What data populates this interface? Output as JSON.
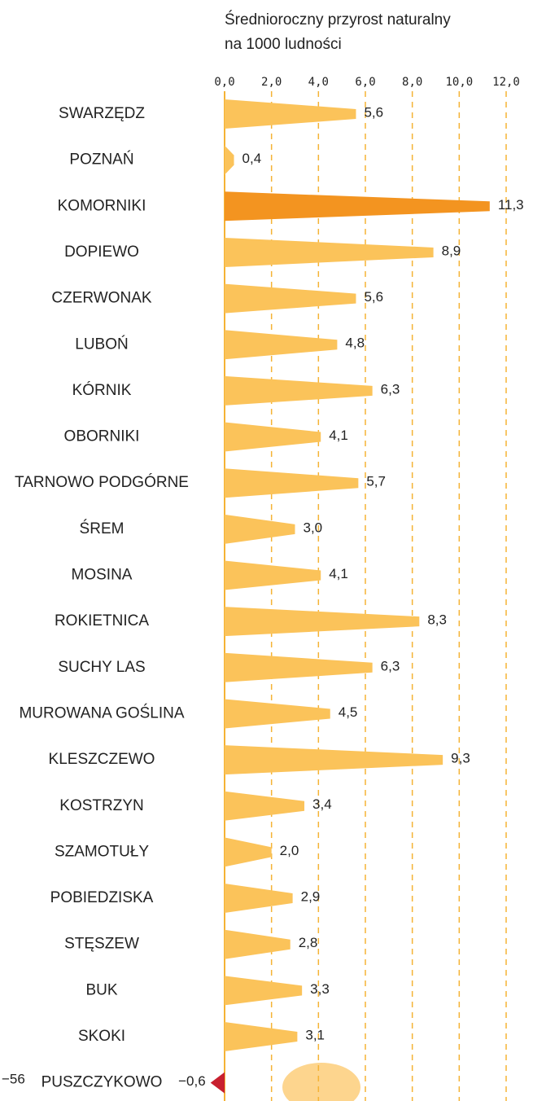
{
  "chart_data": {
    "type": "bar",
    "title": [
      "Średnioroczny przyrost naturalny",
      "na 1000 ludności"
    ],
    "categories": [
      "SWARZĘDZ",
      "POZNAŃ",
      "KOMORNIKI",
      "DOPIEWO",
      "CZERWONAK",
      "LUBOŃ",
      "KÓRNIK",
      "OBORNIKI",
      "TARNOWO PODGÓRNE",
      "ŚREM",
      "MOSINA",
      "ROKIETNICA",
      "SUCHY LAS",
      "MUROWANA GOŚLINA",
      "KLESZCZEWO",
      "KOSTRZYN",
      "SZAMOTUŁY",
      "POBIEDZISKA",
      "STĘSZEW",
      "BUK",
      "SKOKI",
      "PUSZCZYKOWO"
    ],
    "values": [
      5.6,
      0.4,
      11.3,
      8.9,
      5.6,
      4.8,
      6.3,
      4.1,
      5.7,
      3.0,
      4.1,
      8.3,
      6.3,
      4.5,
      9.3,
      3.4,
      2.0,
      2.9,
      2.8,
      3.3,
      3.1,
      -0.6
    ],
    "value_labels": [
      "5,6",
      "0,4",
      "11,3",
      "8,9",
      "5,6",
      "4,8",
      "6,3",
      "4,1",
      "5,7",
      "3,0",
      "4,1",
      "8,3",
      "6,3",
      "4,5",
      "9,3",
      "3,4",
      "2,0",
      "2,9",
      "2,8",
      "3,3",
      "3,1",
      "−0,6"
    ],
    "colors": [
      "#fbc35a",
      "#fbc35a",
      "#f39420",
      "#fbc35a",
      "#fbc35a",
      "#fbc35a",
      "#fbc35a",
      "#fbc35a",
      "#fbc35a",
      "#fbc35a",
      "#fbc35a",
      "#fbc35a",
      "#fbc35a",
      "#fbc35a",
      "#fbc35a",
      "#fbc35a",
      "#fbc35a",
      "#fbc35a",
      "#fbc35a",
      "#fbc35a",
      "#fbc35a",
      "#c8202f"
    ],
    "xlim": [
      0,
      12
    ],
    "xticks": [
      {
        "value": 0,
        "label": "0,0"
      },
      {
        "value": 2,
        "label": "2,0"
      },
      {
        "value": 4,
        "label": "4,0"
      },
      {
        "value": 6,
        "label": "6,0"
      },
      {
        "value": 8,
        "label": "8,0"
      },
      {
        "value": 10,
        "label": "10,0"
      },
      {
        "value": 12,
        "label": "12,0"
      }
    ],
    "grid": true,
    "annotation": "−56"
  }
}
